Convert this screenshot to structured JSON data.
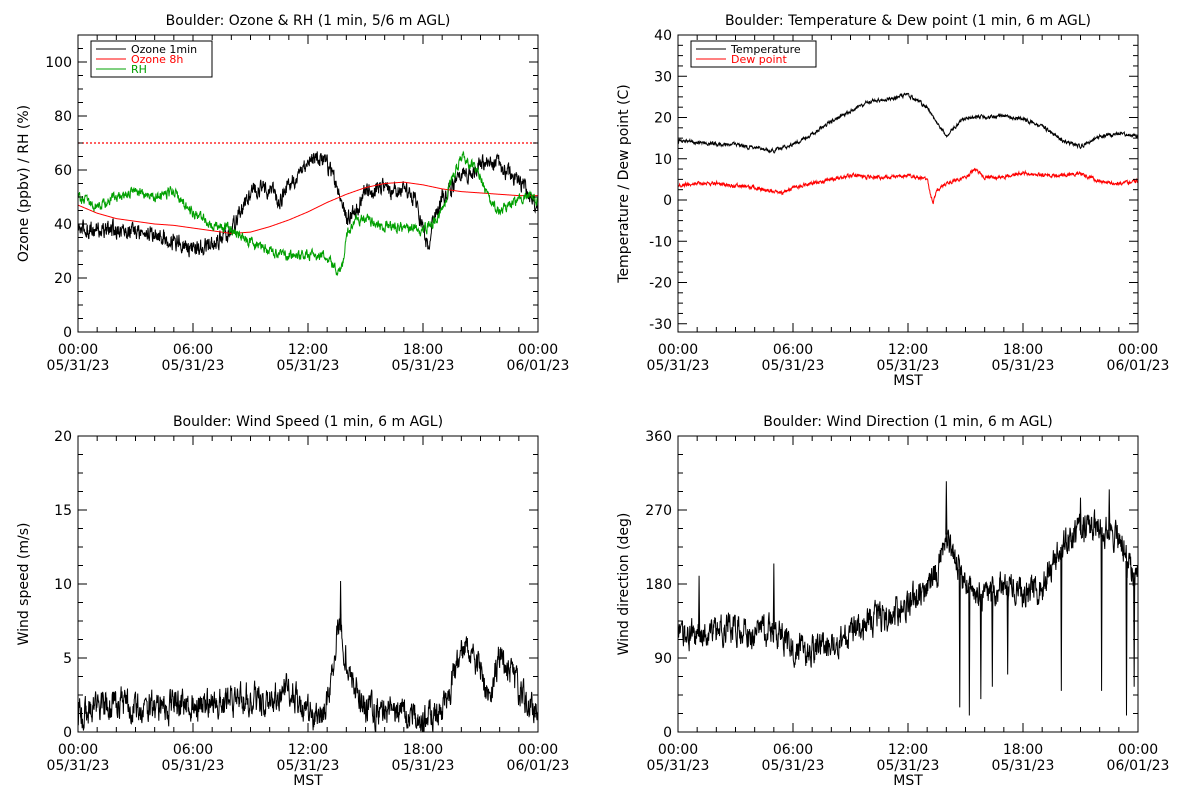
{
  "chart_data": [
    {
      "id": "ozone",
      "type": "line",
      "title": "Boulder: Ozone & RH (1 min, 5/6 m AGL)",
      "ylabel": "Ozone (ppbv) / RH (%)",
      "xlabel": "",
      "ylim": [
        0,
        110
      ],
      "yticks": [
        0,
        20,
        40,
        60,
        80,
        100
      ],
      "xlim": [
        0,
        24
      ],
      "xticks": [
        {
          "h": 0,
          "time": "00:00",
          "date": "05/31/23"
        },
        {
          "h": 6,
          "time": "06:00",
          "date": "05/31/23"
        },
        {
          "h": 12,
          "time": "12:00",
          "date": "05/31/23"
        },
        {
          "h": 18,
          "time": "18:00",
          "date": "05/31/23"
        },
        {
          "h": 24,
          "time": "00:00",
          "date": "06/01/23"
        }
      ],
      "legend": "top-left",
      "reference_line": {
        "y": 70,
        "color": "#ff0000",
        "style": "dotted"
      },
      "series": [
        {
          "name": "Ozone 1min",
          "color": "#000000",
          "noise": 2.5,
          "x": [
            0,
            1,
            2,
            3,
            4,
            5,
            6,
            7,
            7.5,
            8,
            8.5,
            9,
            10,
            10.5,
            11,
            11.5,
            12,
            12.5,
            13,
            13.5,
            14,
            14.5,
            15,
            16,
            17,
            17.5,
            18,
            18.3,
            18.5,
            19,
            20,
            21,
            22,
            23,
            23.5,
            24
          ],
          "y": [
            38,
            38,
            38,
            37,
            36,
            34,
            31,
            32,
            35,
            38,
            45,
            53,
            53,
            48,
            55,
            58,
            63,
            65,
            62,
            55,
            42,
            45,
            52,
            53,
            52,
            50,
            38,
            32,
            40,
            50,
            57,
            62,
            61,
            56,
            51,
            46
          ]
        },
        {
          "name": "Ozone 8h",
          "color": "#ff0000",
          "noise": 0,
          "x": [
            0,
            1,
            2,
            3,
            4,
            5,
            6,
            7,
            8,
            9,
            10,
            11,
            12,
            13,
            14,
            15,
            16,
            17,
            18,
            19,
            20,
            21,
            22,
            23,
            24
          ],
          "y": [
            47,
            44,
            42,
            41,
            40,
            39.5,
            38.5,
            37.5,
            36.5,
            37,
            39,
            41.5,
            44.5,
            48,
            51,
            53.5,
            55,
            55.5,
            54.5,
            53,
            52,
            51.5,
            51,
            50.5,
            50.5
          ]
        },
        {
          "name": "RH",
          "color": "#00a000",
          "noise": 1.5,
          "x": [
            0,
            1,
            2,
            3,
            4,
            5,
            6,
            7,
            8,
            9,
            10,
            11,
            12,
            13,
            13.5,
            13.8,
            14,
            14.5,
            15,
            16,
            17,
            18,
            18.5,
            19,
            19.5,
            20,
            20.5,
            21,
            21.5,
            22,
            22.5,
            23,
            23.5,
            24
          ],
          "y": [
            50,
            46,
            50,
            52,
            50,
            52,
            44,
            40,
            38,
            33,
            30,
            28,
            29,
            28,
            22,
            24,
            36,
            42,
            42,
            39,
            39,
            38,
            40,
            45,
            56,
            65,
            62,
            58,
            48,
            45,
            47,
            49,
            50,
            49
          ]
        }
      ]
    },
    {
      "id": "temp",
      "type": "line",
      "title": "Boulder: Temperature & Dew point (1 min, 6 m AGL)",
      "ylabel": "Temperature / Dew point (C)",
      "xlabel": "MST",
      "ylim": [
        -32,
        40
      ],
      "yticks": [
        -30,
        -20,
        -10,
        0,
        10,
        20,
        30,
        40
      ],
      "xlim": [
        0,
        24
      ],
      "xticks": [
        {
          "h": 0,
          "time": "00:00",
          "date": "05/31/23"
        },
        {
          "h": 6,
          "time": "06:00",
          "date": "05/31/23"
        },
        {
          "h": 12,
          "time": "12:00",
          "date": "05/31/23"
        },
        {
          "h": 18,
          "time": "18:00",
          "date": "05/31/23"
        },
        {
          "h": 24,
          "time": "00:00",
          "date": "06/01/23"
        }
      ],
      "legend": "top-left",
      "series": [
        {
          "name": "Temperature",
          "color": "#000000",
          "noise": 0.35,
          "x": [
            0,
            1,
            2,
            3,
            4,
            5,
            6,
            7,
            8,
            9,
            10,
            11,
            12,
            13,
            14,
            14.5,
            15,
            16,
            17,
            18,
            19,
            20,
            21,
            22,
            23,
            24
          ],
          "y": [
            14.5,
            14,
            13.5,
            13.5,
            12.5,
            12,
            13.5,
            16,
            19,
            21.5,
            24,
            24.5,
            25.5,
            22.5,
            15.5,
            18,
            20,
            20,
            20.5,
            19.5,
            18,
            14.5,
            13,
            15.5,
            16,
            15.5
          ]
        },
        {
          "name": "Dew point",
          "color": "#ff0000",
          "noise": 0.35,
          "x": [
            0,
            1,
            2,
            3,
            4,
            5,
            5.5,
            6,
            7,
            8,
            9,
            10,
            11,
            12,
            13,
            13.3,
            13.5,
            14,
            15,
            15.5,
            16,
            17,
            18,
            19,
            20,
            21,
            22,
            23,
            24
          ],
          "y": [
            3.5,
            4,
            4,
            3.5,
            3,
            2,
            1.5,
            3,
            4,
            5,
            6,
            5.5,
            5.5,
            6,
            5,
            -1,
            2.5,
            4,
            5.5,
            7.5,
            5.5,
            5.5,
            6.5,
            6,
            6,
            6.5,
            4.5,
            4,
            4.5
          ]
        }
      ]
    },
    {
      "id": "wspd",
      "type": "line",
      "title": "Boulder: Wind Speed (1 min, 6 m AGL)",
      "ylabel": "Wind speed (m/s)",
      "xlabel": "MST",
      "ylim": [
        0,
        20
      ],
      "yticks": [
        0,
        5,
        10,
        15,
        20
      ],
      "xlim": [
        0,
        24
      ],
      "xticks": [
        {
          "h": 0,
          "time": "00:00",
          "date": "05/31/23"
        },
        {
          "h": 6,
          "time": "06:00",
          "date": "05/31/23"
        },
        {
          "h": 12,
          "time": "12:00",
          "date": "05/31/23"
        },
        {
          "h": 18,
          "time": "18:00",
          "date": "05/31/23"
        },
        {
          "h": 24,
          "time": "00:00",
          "date": "06/01/23"
        }
      ],
      "series": [
        {
          "name": "",
          "color": "#000000",
          "noise": 0.8,
          "x": [
            0,
            1,
            2,
            3,
            4,
            5,
            6,
            7,
            8,
            9,
            10,
            11,
            12,
            12.8,
            13.3,
            13.6,
            14,
            14.5,
            15,
            16,
            17,
            18,
            19,
            19.5,
            20,
            20.5,
            21,
            21.5,
            22,
            22.5,
            23,
            23.5,
            24
          ],
          "y": [
            1.3,
            1.6,
            1.9,
            1.7,
            1.6,
            1.8,
            1.8,
            2.0,
            2.1,
            2.3,
            2.3,
            2.8,
            1.2,
            1.0,
            4.0,
            7.5,
            5.0,
            3.0,
            1.5,
            1.3,
            1.1,
            1.0,
            1.5,
            3.5,
            5.5,
            6.0,
            4.0,
            2.0,
            5.5,
            4.0,
            3.0,
            2.0,
            1.2
          ]
        }
      ],
      "spikes": [
        {
          "x": 13.7,
          "y": 10.2
        }
      ]
    },
    {
      "id": "wdir",
      "type": "line",
      "title": "Boulder: Wind Direction (1 min, 6 m AGL)",
      "ylabel": "Wind direction (deg)",
      "xlabel": "MST",
      "ylim": [
        0,
        360
      ],
      "yticks": [
        0,
        90,
        180,
        270,
        360
      ],
      "xlim": [
        0,
        24
      ],
      "xticks": [
        {
          "h": 0,
          "time": "00:00",
          "date": "05/31/23"
        },
        {
          "h": 6,
          "time": "06:00",
          "date": "05/31/23"
        },
        {
          "h": 12,
          "time": "12:00",
          "date": "05/31/23"
        },
        {
          "h": 18,
          "time": "18:00",
          "date": "05/31/23"
        },
        {
          "h": 24,
          "time": "00:00",
          "date": "06/01/23"
        }
      ],
      "series": [
        {
          "name": "",
          "color": "#000000",
          "noise": 14,
          "x": [
            0,
            1,
            2,
            3,
            4,
            5,
            6,
            7,
            8,
            9,
            10,
            11,
            12,
            13,
            13.5,
            14,
            14.5,
            15,
            16,
            17,
            18,
            19,
            20,
            21,
            22,
            23,
            23.5,
            24
          ],
          "y": [
            110,
            120,
            125,
            125,
            120,
            125,
            105,
            100,
            110,
            120,
            135,
            140,
            155,
            175,
            190,
            240,
            210,
            180,
            165,
            180,
            165,
            175,
            225,
            245,
            250,
            240,
            200,
            190
          ]
        }
      ],
      "spikes": [
        {
          "x": 5.0,
          "y": 205
        },
        {
          "x": 1.1,
          "y": 190
        },
        {
          "x": 14.0,
          "y": 305
        },
        {
          "x": 14.7,
          "y": 30
        },
        {
          "x": 15.2,
          "y": 20
        },
        {
          "x": 15.8,
          "y": 40
        },
        {
          "x": 16.4,
          "y": 55
        },
        {
          "x": 17.2,
          "y": 70
        },
        {
          "x": 20.0,
          "y": 50
        },
        {
          "x": 21.0,
          "y": 285
        },
        {
          "x": 22.1,
          "y": 50
        },
        {
          "x": 22.5,
          "y": 295
        },
        {
          "x": 23.4,
          "y": 20
        },
        {
          "x": 23.8,
          "y": 55
        }
      ]
    }
  ]
}
